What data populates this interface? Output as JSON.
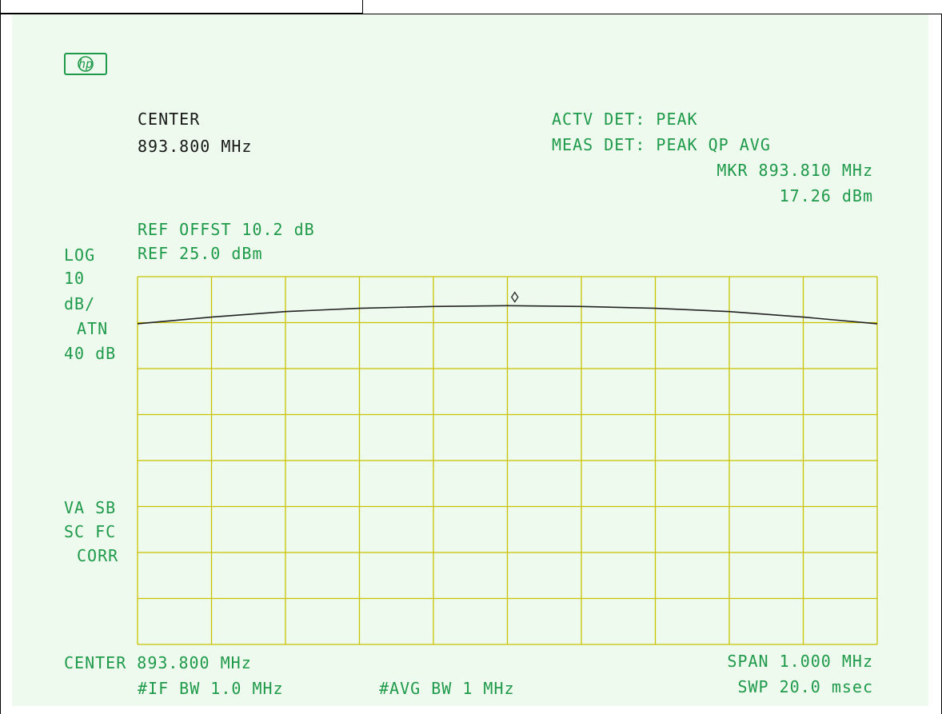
{
  "colors": {
    "screen_bg": "#eefaee",
    "graticule": "#c8c200",
    "trace": "#222222",
    "annot_green": "#1f9a4a",
    "annot_black": "#1a1a1a"
  },
  "logo": {
    "icon": "hp-logo-icon",
    "text": "hp"
  },
  "header": {
    "center_label": "CENTER",
    "center_value": "893.800 MHz",
    "actv_det": "ACTV DET: PEAK",
    "meas_det": "MEAS DET: PEAK QP AVG",
    "marker_freq": "MKR 893.810 MHz",
    "marker_level": "17.26 dBm",
    "ref_offset": "REF OFFST 10.2 dB",
    "ref_level": "REF 25.0 dBm"
  },
  "left_panel": {
    "scale_mode": "LOG",
    "scale_value": "10",
    "scale_unit": "dB/",
    "atten_label": "ATN",
    "atten_value": "40 dB",
    "flag1": "VA SB",
    "flag2": "SC FC",
    "flag3": "CORR"
  },
  "footer": {
    "center": "CENTER 893.800 MHz",
    "span": "SPAN 1.000 MHz",
    "if_bw": "#IF BW 1.0 MHz",
    "avg_bw": "#AVG BW 1 MHz",
    "sweep": "SWP 20.0 msec"
  },
  "chart_data": {
    "type": "line",
    "x_unit": "MHz",
    "y_unit": "dBm",
    "xlim": [
      893.3,
      894.3
    ],
    "ylim": [
      -75,
      25
    ],
    "grid": true,
    "series": [
      {
        "x": [
          893.3,
          893.4,
          893.5,
          893.6,
          893.7,
          893.8,
          893.9,
          894.0,
          894.1,
          894.2,
          894.3
        ],
        "values": [
          12.2,
          14.0,
          15.5,
          16.4,
          16.9,
          17.1,
          16.9,
          16.4,
          15.5,
          14.0,
          12.2
        ]
      }
    ],
    "marker": {
      "x": 893.81,
      "y": 17.26,
      "symbol": "diamond"
    }
  }
}
